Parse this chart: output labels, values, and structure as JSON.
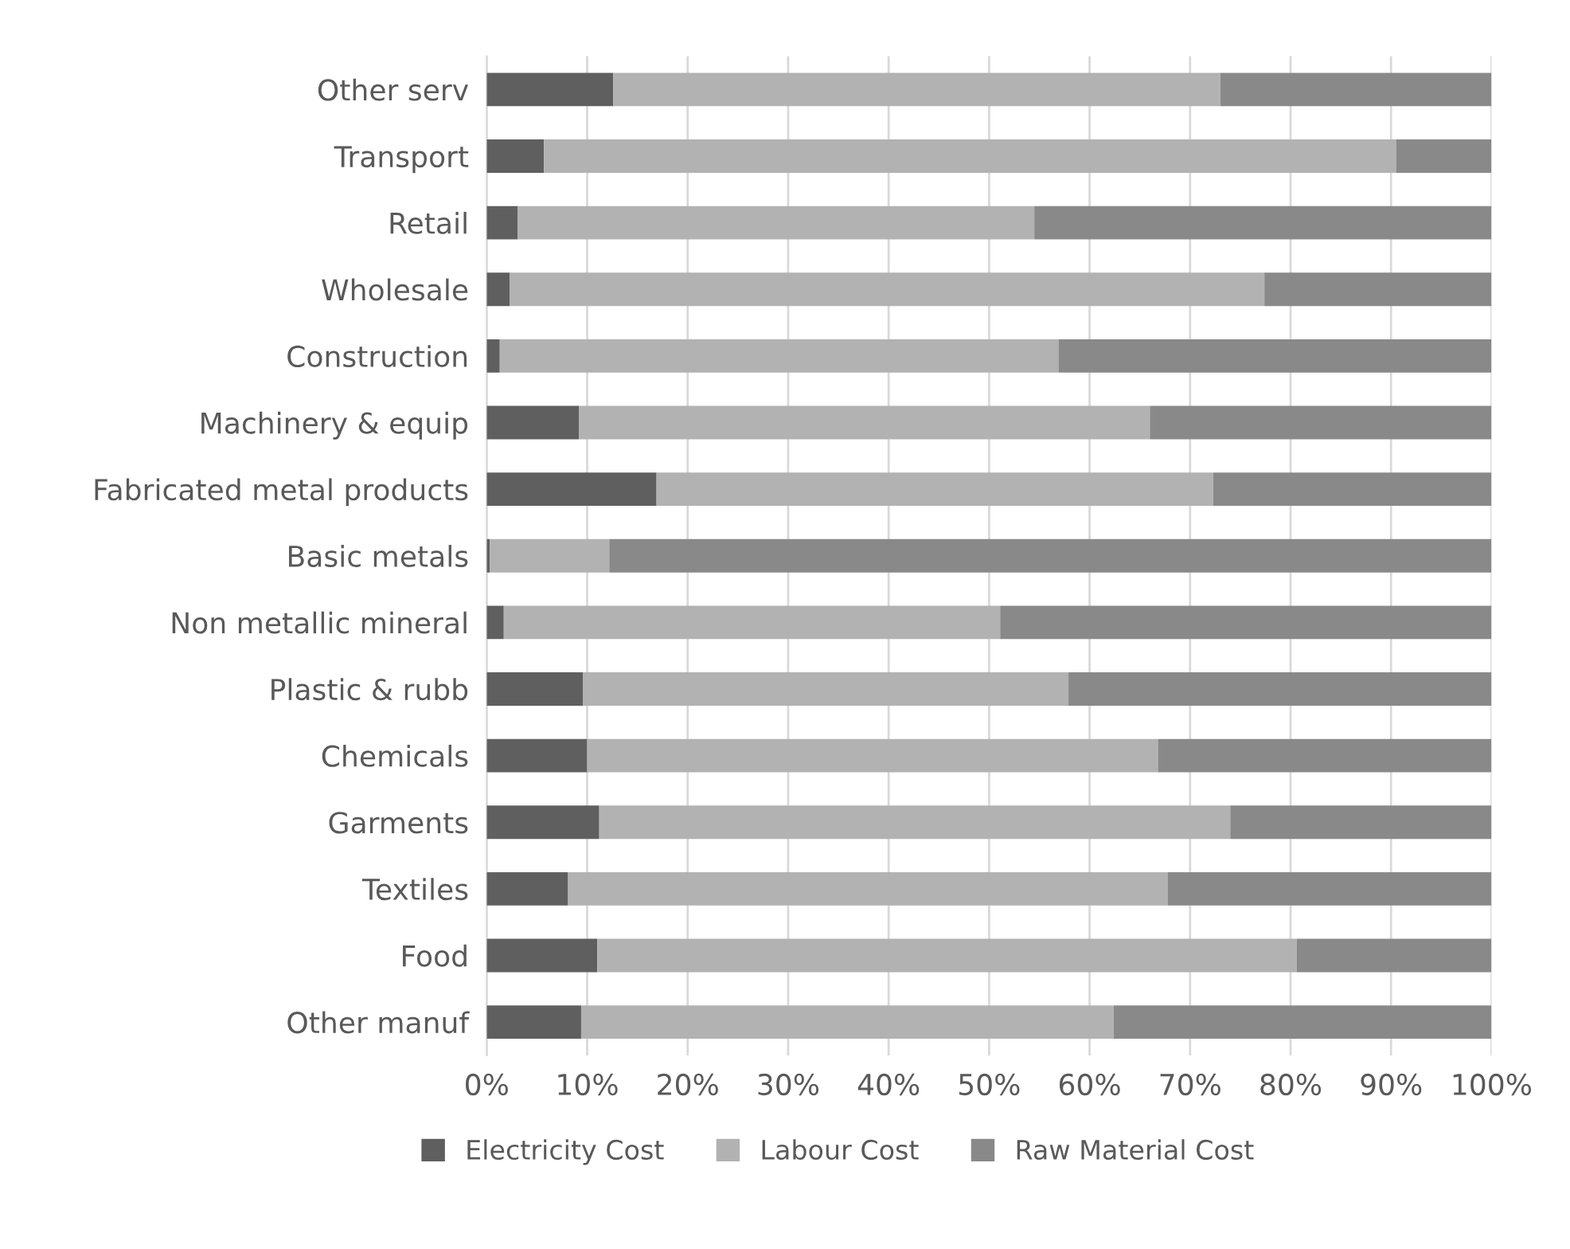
{
  "chart_data": {
    "type": "bar",
    "orientation": "horizontal",
    "stacked": true,
    "categories": [
      "Other serv",
      "Transport",
      "Retail",
      "Wholesale",
      "Construction",
      "Machinery & equip",
      "Fabricated metal products",
      "Basic metals",
      "Non metallic mineral",
      "Plastic & rubb",
      "Chemicals",
      "Garments",
      "Textiles",
      "Food",
      "Other manuf"
    ],
    "series": [
      {
        "name": "Electricity Cost",
        "color": "#5f5f5f",
        "values": [
          12.6,
          5.7,
          3.1,
          2.3,
          1.3,
          9.2,
          16.9,
          0.3,
          1.7,
          9.6,
          10.0,
          11.2,
          8.1,
          11.0,
          9.4
        ]
      },
      {
        "name": "Labour Cost",
        "color": "#b2b2b2",
        "values": [
          60.4,
          84.8,
          51.4,
          75.1,
          55.6,
          56.8,
          55.4,
          11.9,
          49.4,
          48.3,
          56.8,
          62.8,
          59.7,
          69.6,
          53.0
        ]
      },
      {
        "name": "Raw Material Cost",
        "color": "#898989",
        "values": [
          27.0,
          9.5,
          45.5,
          22.6,
          43.1,
          34.0,
          27.7,
          87.8,
          48.9,
          42.1,
          33.2,
          26.0,
          32.2,
          19.4,
          37.6
        ]
      }
    ],
    "xlim": [
      0,
      100
    ],
    "xticks": [
      {
        "value": 0,
        "label": "0%"
      },
      {
        "value": 10,
        "label": "10%"
      },
      {
        "value": 20,
        "label": "20%"
      },
      {
        "value": 30,
        "label": "30%"
      },
      {
        "value": 40,
        "label": "40%"
      },
      {
        "value": 50,
        "label": "50%"
      },
      {
        "value": 60,
        "label": "60%"
      },
      {
        "value": 70,
        "label": "70%"
      },
      {
        "value": 80,
        "label": "80%"
      },
      {
        "value": 90,
        "label": "90%"
      },
      {
        "value": 100,
        "label": "100%"
      }
    ],
    "grid": "x",
    "legend": "bottom"
  }
}
